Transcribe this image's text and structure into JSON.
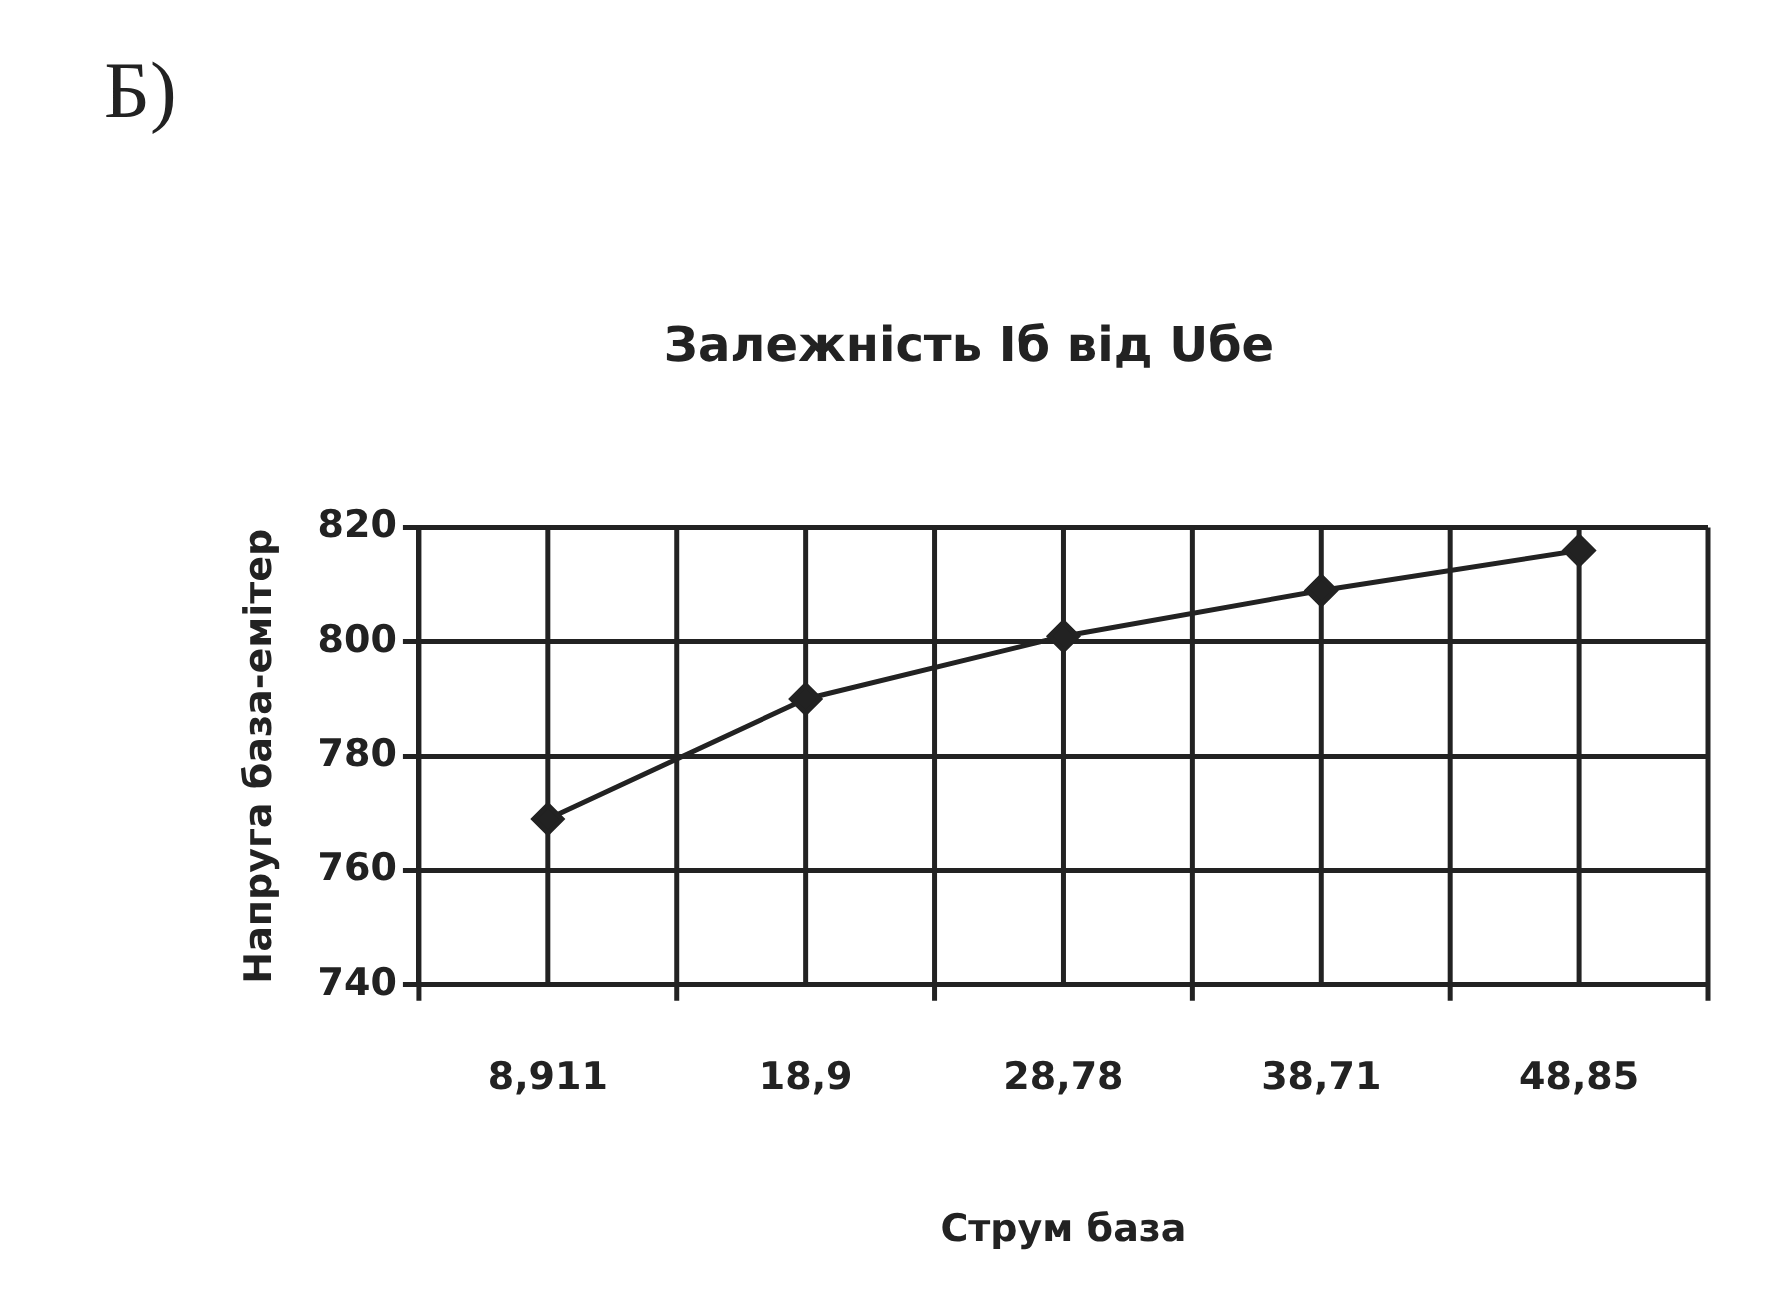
{
  "chart_data": {
    "type": "line",
    "title": "Залежність Іб від Uбе",
    "xlabel": "Струм база",
    "ylabel": "Напруга база-емітер",
    "annotations": [
      "Б)"
    ],
    "categories": [
      "8,911",
      "18,9",
      "28,78",
      "38,71",
      "48,85"
    ],
    "series": [
      {
        "color": "#222222",
        "values": [
          769,
          790,
          801,
          809,
          816
        ]
      }
    ],
    "ylim": [
      740,
      820
    ],
    "yticks": [
      740,
      760,
      780,
      800,
      820
    ],
    "grid": true,
    "legend": false,
    "marker": "diamond",
    "line_style": "solid"
  }
}
